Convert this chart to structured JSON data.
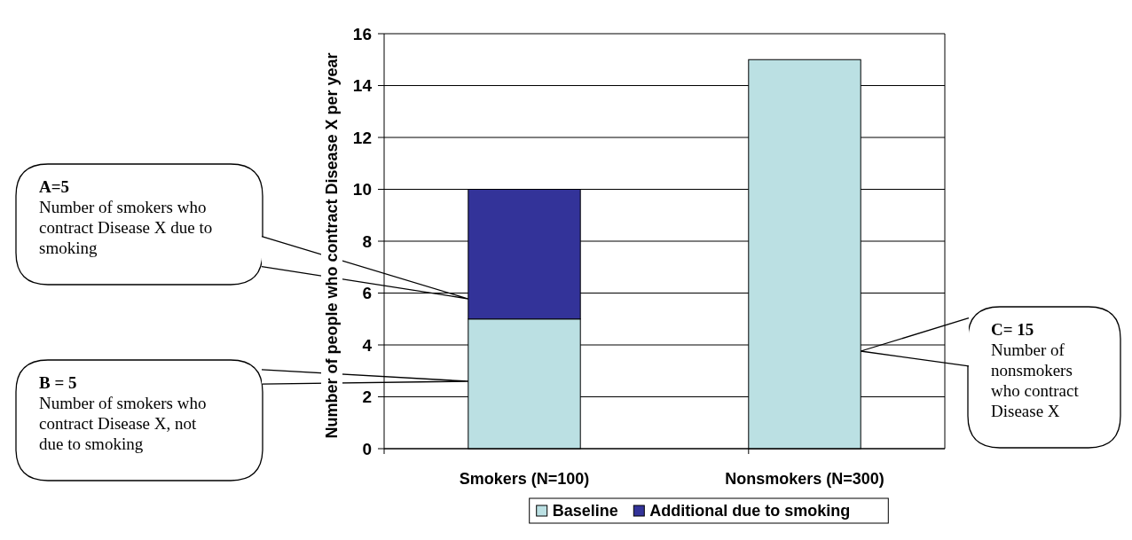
{
  "chart_data": {
    "type": "bar",
    "stacked": true,
    "ylabel": "Number of people who contract Disease X per year",
    "categories": [
      "Smokers (N=100)",
      "Nonsmokers (N=300)"
    ],
    "series": [
      {
        "name": "Baseline",
        "color": "#bbe0e3",
        "values": [
          5,
          15
        ]
      },
      {
        "name": "Additional due to smoking",
        "color": "#333399",
        "values": [
          5,
          null
        ]
      }
    ],
    "ylim": [
      0,
      16
    ],
    "yticks": [
      0,
      2,
      4,
      6,
      8,
      10,
      12,
      14,
      16
    ],
    "grid": "y",
    "legend": "bottom",
    "annotations": [
      "A=5\nNumber of smokers who contract Disease X due to smoking",
      "B = 5\nNumber of smokers who contract Disease X, not due to smoking",
      "C= 15\nNumber of nonsmokers who contract Disease X"
    ]
  }
}
